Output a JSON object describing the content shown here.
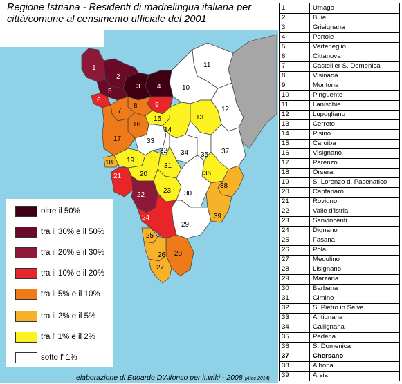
{
  "title": "Regione Istriana - Residenti di madrelingua italiana per città/comune al censimento ufficiale del 2001",
  "colors": {
    "sea": "#8fd1e6",
    "slovenia_gray": "#a6a6a6",
    "over50": "#3f0014",
    "c30_50": "#6a0a28",
    "c20_30": "#8e1838",
    "c10_20": "#e8262a",
    "c5_10": "#ef7a1a",
    "c2_5": "#f7b22a",
    "c1_2": "#fbf21f",
    "under1": "#ffffff"
  },
  "legend": [
    {
      "label": "oltre il 50%",
      "color": "#3f0014"
    },
    {
      "label": "tra il 30% e il 50%",
      "color": "#6a0a28"
    },
    {
      "label": "tra il 20% e il 30%",
      "color": "#8e1838"
    },
    {
      "label": "tra il 10% e il 20%",
      "color": "#e8262a"
    },
    {
      "label": "tra il 5% e il 10%",
      "color": "#ef7a1a"
    },
    {
      "label": "tra il 2% e il 5%",
      "color": "#f7b22a"
    },
    {
      "label": "tra  l' 1% e il 2%",
      "color": "#fbf21f"
    },
    {
      "label": "sotto l' 1%",
      "color": "#ffffff"
    }
  ],
  "credit": "elaborazione di Edoardo D'Alfonso per it.wiki - 2008",
  "credit_small": "(Atoc 2014)",
  "municipalities": [
    {
      "num": "1",
      "name": "Umago"
    },
    {
      "num": "2",
      "name": "Buie"
    },
    {
      "num": "3",
      "name": "Grisignana"
    },
    {
      "num": "4",
      "name": "Portole"
    },
    {
      "num": "5",
      "name": "Verteneglio"
    },
    {
      "num": "6",
      "name": "Cittanova"
    },
    {
      "num": "7",
      "name": "Castellier S. Domenica"
    },
    {
      "num": "8",
      "name": "Visinada"
    },
    {
      "num": "9",
      "name": "Montona"
    },
    {
      "num": "10",
      "name": "Pinguente"
    },
    {
      "num": "11",
      "name": "Lanischie"
    },
    {
      "num": "12",
      "name": "Lupogliano"
    },
    {
      "num": "13",
      "name": "Cerreto"
    },
    {
      "num": "14",
      "name": "Pisino"
    },
    {
      "num": "15",
      "name": "Caroiba"
    },
    {
      "num": "16",
      "name": "Visignano"
    },
    {
      "num": "17",
      "name": "Parenzo"
    },
    {
      "num": "18",
      "name": "Orsera"
    },
    {
      "num": "19",
      "name": "S. Lorenzo d. Pasenatico"
    },
    {
      "num": "20",
      "name": "Canfanaro"
    },
    {
      "num": "21",
      "name": "Rovigno"
    },
    {
      "num": "22",
      "name": "Valle d'Istria"
    },
    {
      "num": "23",
      "name": "Sanvincenti"
    },
    {
      "num": "24",
      "name": "Dignano"
    },
    {
      "num": "25",
      "name": "Fasana"
    },
    {
      "num": "26",
      "name": "Pola"
    },
    {
      "num": "27",
      "name": "Medulino"
    },
    {
      "num": "28",
      "name": "Lisignano"
    },
    {
      "num": "29",
      "name": "Marzana"
    },
    {
      "num": "30",
      "name": "Barbana"
    },
    {
      "num": "31",
      "name": "Gimino"
    },
    {
      "num": "32",
      "name": "S. Pietro in Selve"
    },
    {
      "num": "33",
      "name": "Antignana"
    },
    {
      "num": "34",
      "name": "Gallignana"
    },
    {
      "num": "35",
      "name": "Pedena"
    },
    {
      "num": "36",
      "name": "S. Domenica"
    },
    {
      "num": "37",
      "name": "Chersano"
    },
    {
      "num": "38",
      "name": "Albona"
    },
    {
      "num": "39",
      "name": "Arsia"
    }
  ],
  "map_labels": [
    "1",
    "2",
    "3",
    "4",
    "5",
    "6",
    "7",
    "8",
    "9",
    "10",
    "11",
    "12",
    "13",
    "14",
    "15",
    "16",
    "17",
    "18",
    "19",
    "20",
    "21",
    "22",
    "23",
    "24",
    "25",
    "26",
    "27",
    "28",
    "29",
    "30",
    "31",
    "32",
    "33",
    "34",
    "35",
    "36",
    "37",
    "38",
    "39"
  ]
}
